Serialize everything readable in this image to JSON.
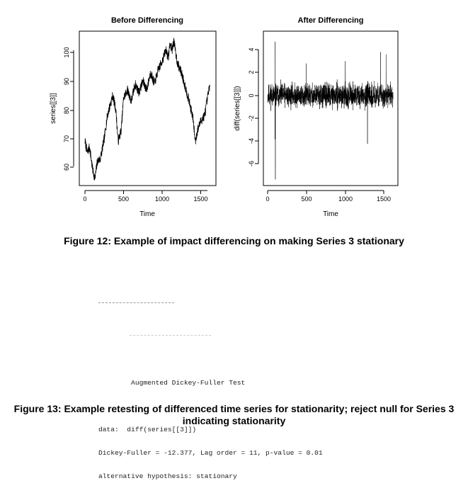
{
  "figure12": {
    "caption": "Figure 12: Example of impact differencing on making Series 3 stationary",
    "charts": [
      {
        "title": "Before Differencing",
        "xlabel": "Time",
        "ylabel": "series[[3]]",
        "xticks": [
          "0",
          "500",
          "1000",
          "1500"
        ],
        "yticks": [
          "60",
          "70",
          "80",
          "90",
          "100"
        ]
      },
      {
        "title": "After Differencing",
        "xlabel": "Time",
        "ylabel": "diff(series[[3]])",
        "xticks": [
          "0",
          "500",
          "1000",
          "1500"
        ],
        "yticks": [
          "-6",
          "-4",
          "-2",
          "0",
          "2",
          "4"
        ]
      }
    ]
  },
  "chart_data": [
    {
      "type": "line",
      "title": "Before Differencing",
      "xlabel": "Time",
      "ylabel": "series[[3]]",
      "xlim": [
        0,
        1650
      ],
      "ylim": [
        55,
        104
      ],
      "grid": false,
      "series": [
        {
          "x": [
            1,
            30,
            60,
            100,
            130,
            160,
            200,
            250,
            290,
            330,
            360,
            400,
            430,
            470,
            500,
            550,
            600,
            650,
            700,
            750,
            800,
            850,
            900,
            950,
            1000,
            1050,
            1080,
            1100,
            1130,
            1150,
            1200,
            1250,
            1300,
            1350,
            1400,
            1430,
            1460,
            1500,
            1550,
            1600,
            1620
          ],
          "y": [
            69,
            65,
            67,
            59,
            56,
            62,
            63,
            70,
            78,
            82,
            85,
            80,
            69,
            73,
            84,
            87,
            83,
            89,
            86,
            90,
            87,
            93,
            89,
            94,
            97,
            101,
            98,
            103,
            101,
            104,
            96,
            93,
            88,
            83,
            77,
            69,
            73,
            76,
            78,
            86,
            89
          ]
        }
      ]
    },
    {
      "type": "line",
      "title": "After Differencing",
      "xlabel": "Time",
      "ylabel": "diff(series[[3]])",
      "xlim": [
        0,
        1650
      ],
      "ylim": [
        -7.4,
        4.9
      ],
      "grid": false,
      "approx_n": 1620,
      "noise_sd": 0.75,
      "spikes": [
        {
          "x": 95,
          "y": 4.7
        },
        {
          "x": 100,
          "y": -7.3
        },
        {
          "x": 95,
          "y": -3.8
        },
        {
          "x": 1290,
          "y": -4.2
        },
        {
          "x": 1460,
          "y": 3.8
        },
        {
          "x": 1530,
          "y": 3.6
        },
        {
          "x": 1000,
          "y": 3.0
        },
        {
          "x": 500,
          "y": 2.8
        }
      ]
    }
  ],
  "figure13": {
    "caption": "Figure 13: Example retesting of differenced time series for stationarity; reject null for Series 3 indicating stationarity",
    "console": {
      "lines": [
        "",
        "        Augmented Dickey-Fuller Test",
        "",
        "data:  diff(series[[3]])",
        "Dickey-Fuller = -12.377, Lag order = 11, p-value = 0.01",
        "alternative hypothesis: stationary"
      ]
    }
  }
}
